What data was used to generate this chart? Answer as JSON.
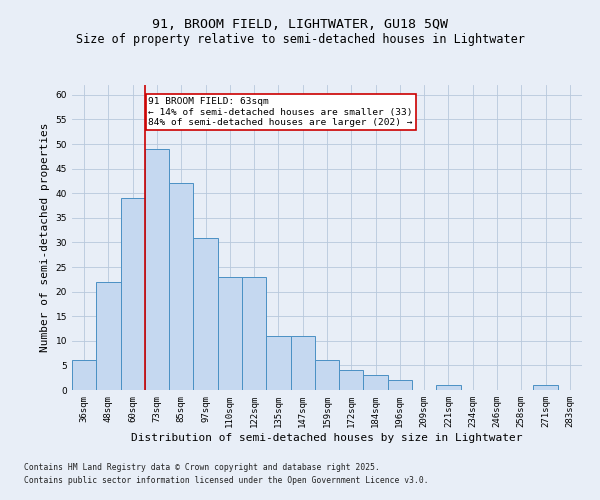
{
  "title1": "91, BROOM FIELD, LIGHTWATER, GU18 5QW",
  "title2": "Size of property relative to semi-detached houses in Lightwater",
  "xlabel": "Distribution of semi-detached houses by size in Lightwater",
  "ylabel": "Number of semi-detached properties",
  "categories": [
    "36sqm",
    "48sqm",
    "60sqm",
    "73sqm",
    "85sqm",
    "97sqm",
    "110sqm",
    "122sqm",
    "135sqm",
    "147sqm",
    "159sqm",
    "172sqm",
    "184sqm",
    "196sqm",
    "209sqm",
    "221sqm",
    "234sqm",
    "246sqm",
    "258sqm",
    "271sqm",
    "283sqm"
  ],
  "values": [
    6,
    22,
    39,
    49,
    42,
    31,
    23,
    23,
    11,
    11,
    6,
    4,
    3,
    2,
    0,
    1,
    0,
    0,
    0,
    1,
    0
  ],
  "bar_color": "#c5d8f0",
  "bar_edge_color": "#4a90c4",
  "vline_x": 2.5,
  "vline_color": "#cc0000",
  "annotation_text": "91 BROOM FIELD: 63sqm\n← 14% of semi-detached houses are smaller (33)\n84% of semi-detached houses are larger (202) →",
  "annotation_box_color": "#ffffff",
  "annotation_box_edge": "#cc0000",
  "ylim": [
    0,
    62
  ],
  "yticks": [
    0,
    5,
    10,
    15,
    20,
    25,
    30,
    35,
    40,
    45,
    50,
    55,
    60
  ],
  "background_color": "#e8eef7",
  "footer1": "Contains HM Land Registry data © Crown copyright and database right 2025.",
  "footer2": "Contains public sector information licensed under the Open Government Licence v3.0.",
  "title_fontsize": 9.5,
  "subtitle_fontsize": 8.5,
  "tick_fontsize": 6.5,
  "label_fontsize": 8,
  "footer_fontsize": 5.8,
  "annot_fontsize": 6.8
}
